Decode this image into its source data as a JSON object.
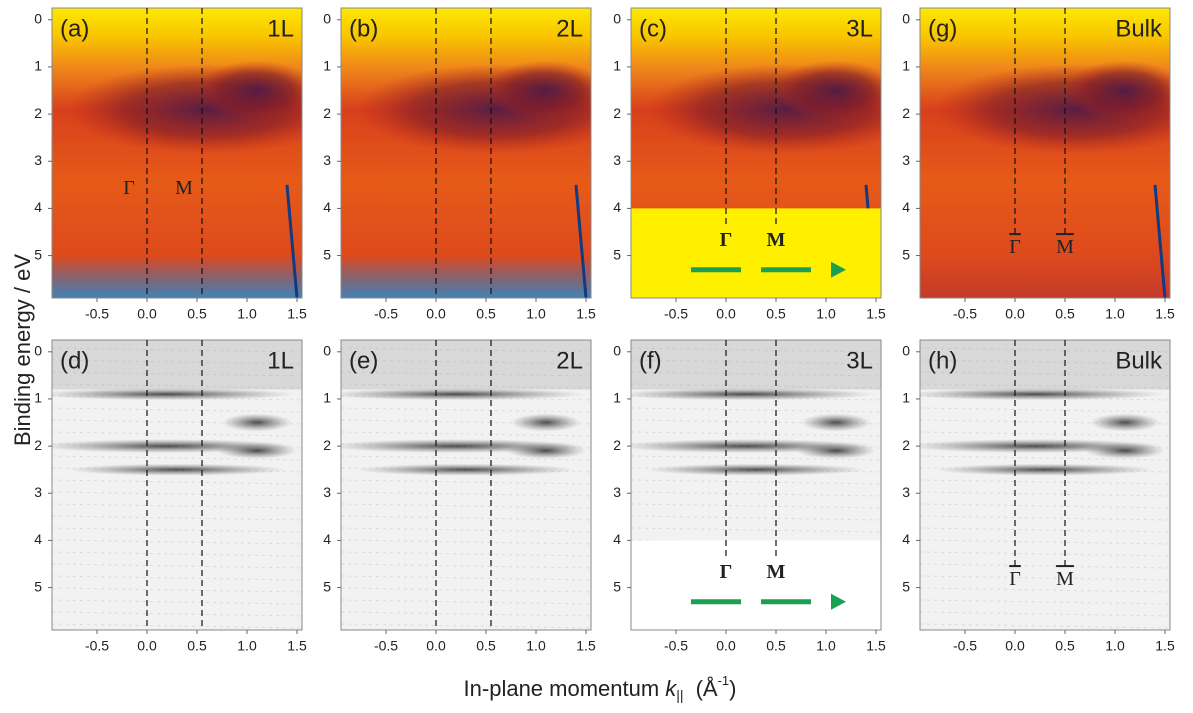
{
  "axes": {
    "xlim": [
      -0.95,
      1.55
    ],
    "ylim": [
      -0.25,
      5.9
    ],
    "xticks": [
      {
        "value": -0.5,
        "label": "-0.5"
      },
      {
        "value": 0,
        "label": "0.0"
      },
      {
        "value": 0.5,
        "label": "0.5"
      },
      {
        "value": 1,
        "label": "1.0"
      },
      {
        "value": 1.5,
        "label": "1.5"
      }
    ],
    "yticks": [
      0,
      1,
      2,
      3,
      4,
      5
    ],
    "ylabel": "Binding energy / eV",
    "xlabel": {
      "text": "In-plane momentum ",
      "symbol": "k",
      "subscript": "||",
      "unit": "(Å",
      "exponent": "-1",
      "close": ")"
    }
  },
  "chart_data": [
    {
      "type": "heatmap",
      "palette": "heat",
      "label": "(a)",
      "layer": "1L",
      "markers": [
        {
          "value": 0,
          "label": "Γ"
        },
        {
          "value": 0.55,
          "label": "M"
        }
      ]
    },
    {
      "type": "heatmap",
      "palette": "heat",
      "label": "(b)",
      "layer": "2L",
      "markers": [
        0,
        0.55
      ]
    },
    {
      "type": "heatmap",
      "palette": "heat",
      "label": "(c)",
      "layer": "3L",
      "extent_bottom": 4,
      "arrow": true,
      "markers": [
        {
          "value": 0,
          "label": "Γ"
        },
        {
          "value": 0.5,
          "label": "M"
        }
      ]
    },
    {
      "type": "heatmap",
      "palette": "heat",
      "label": "(g)",
      "layer": "Bulk",
      "overline": true,
      "markers": [
        {
          "value": 0,
          "label": "Γ"
        },
        {
          "value": 0.5,
          "label": "M"
        }
      ]
    },
    {
      "type": "heatmap",
      "palette": "gray",
      "label": "(d)",
      "layer": "1L",
      "markers": [
        0,
        0.55
      ]
    },
    {
      "type": "heatmap",
      "palette": "gray",
      "label": "(e)",
      "layer": "2L",
      "markers": [
        0,
        0.55
      ]
    },
    {
      "type": "heatmap",
      "palette": "gray",
      "label": "(f)",
      "layer": "3L",
      "extent_bottom": 4,
      "arrow": true,
      "markers": [
        {
          "value": 0,
          "label": "Γ"
        },
        {
          "value": 0.5,
          "label": "M"
        }
      ]
    },
    {
      "type": "heatmap",
      "palette": "gray",
      "label": "(h)",
      "layer": "Bulk",
      "overline": true,
      "markers": [
        {
          "value": 0,
          "label": "Γ"
        },
        {
          "value": 0.5,
          "label": "M"
        }
      ]
    }
  ]
}
